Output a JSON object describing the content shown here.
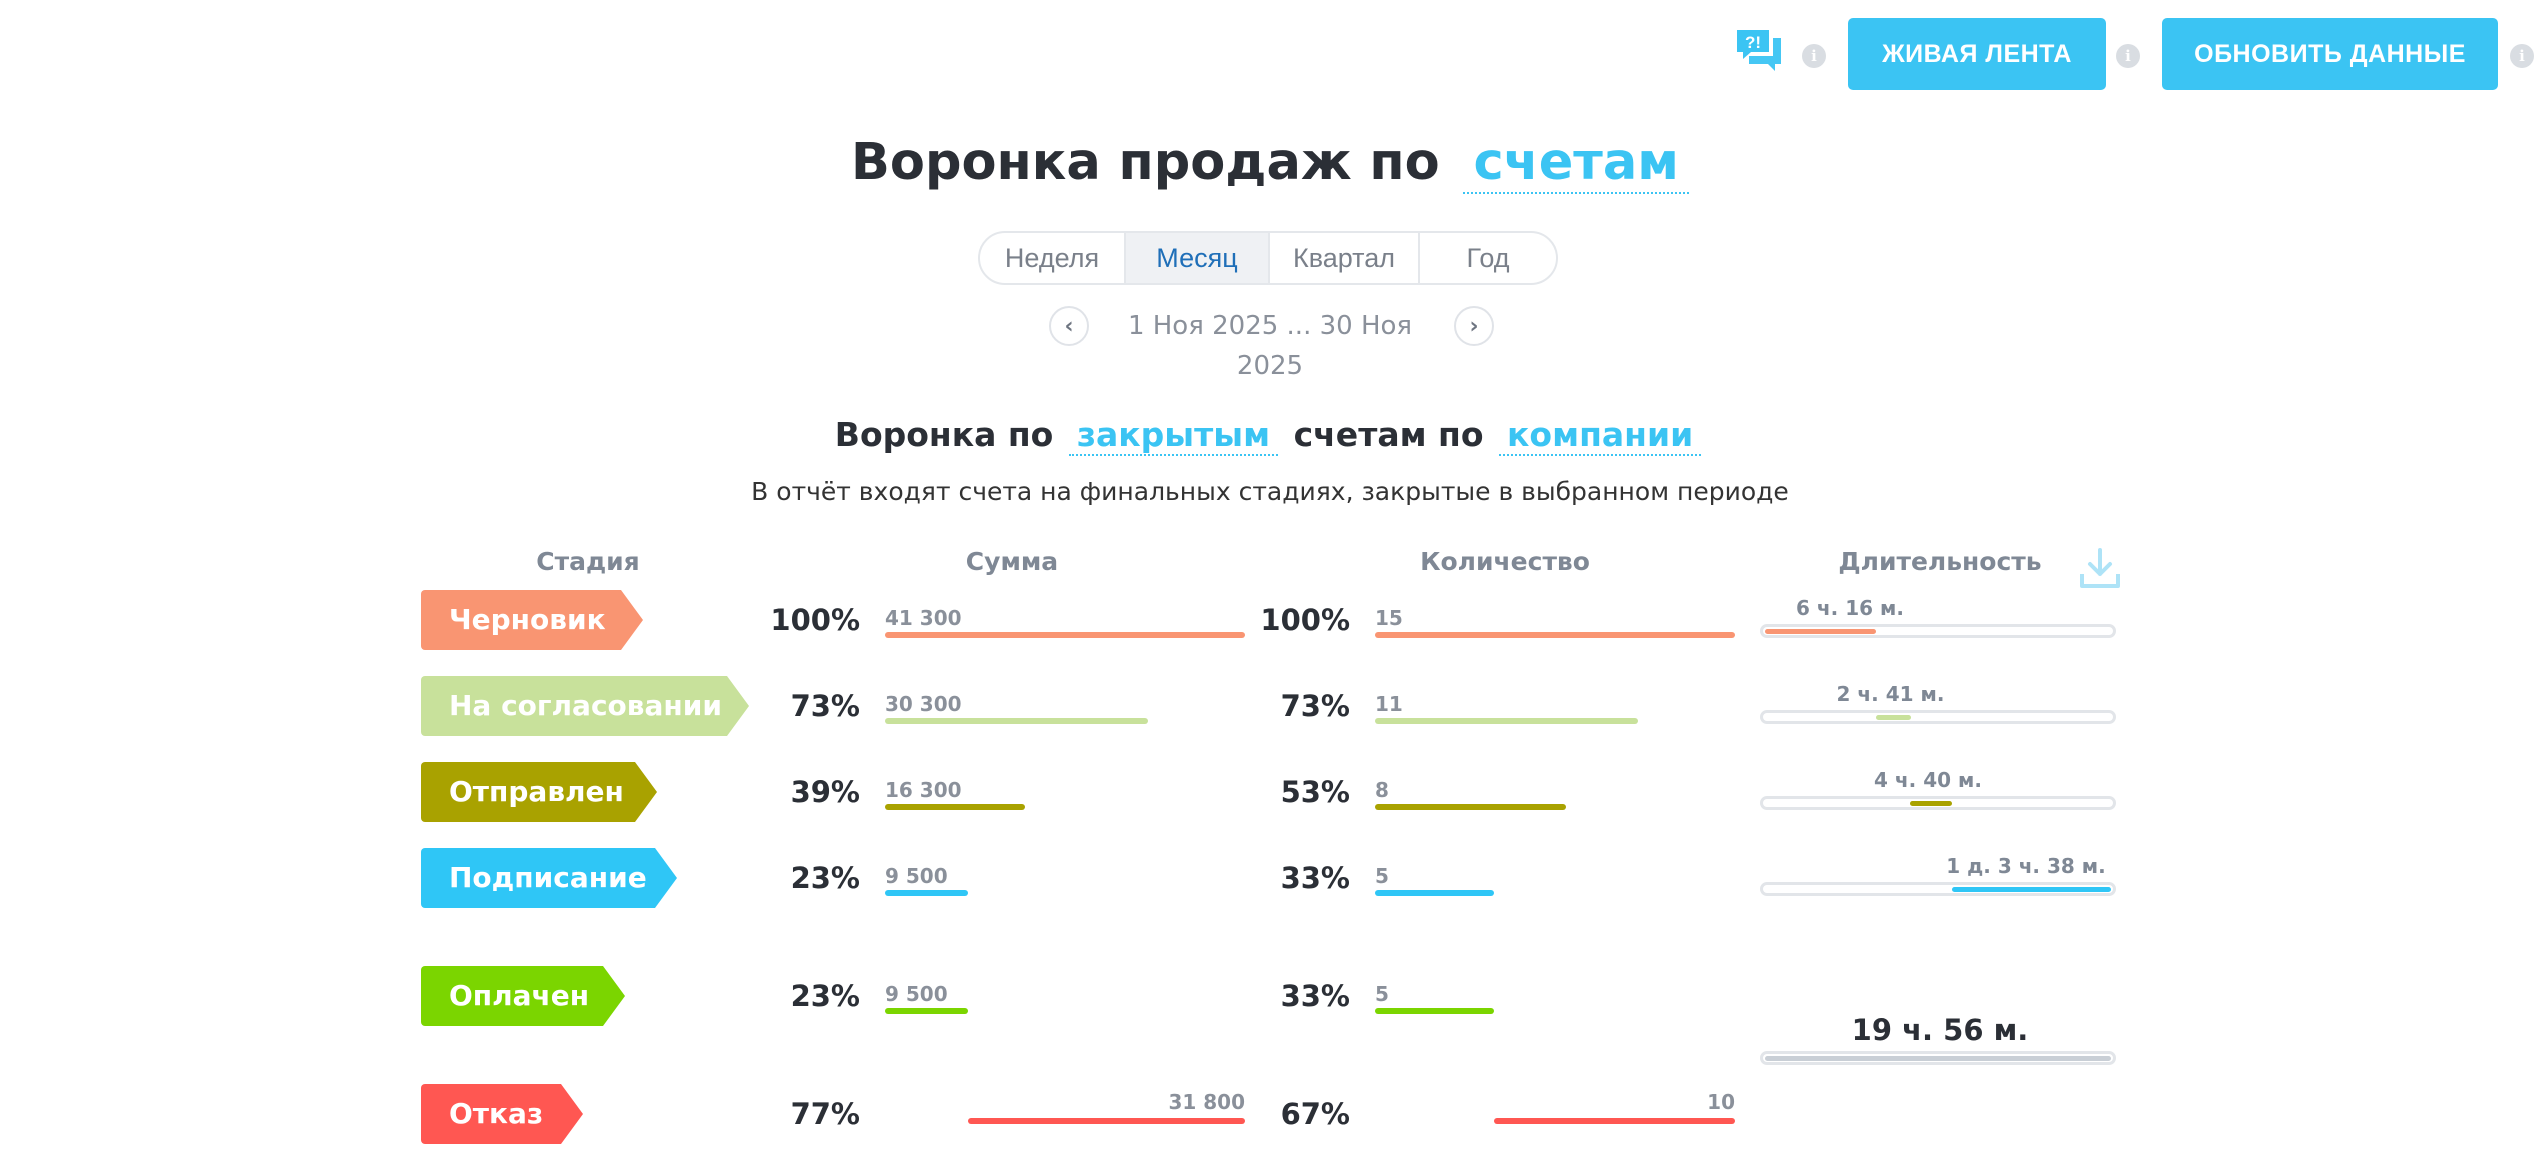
{
  "top_bar": {
    "live_feed_label": "ЖИВАЯ ЛЕНТА",
    "refresh_label": "ОБНОВИТЬ ДАННЫЕ",
    "help_icon_text": "?!",
    "info_glyph": "i"
  },
  "header": {
    "title_prefix": "Воронка продаж по",
    "title_link": "счетам"
  },
  "period": {
    "tabs": [
      {
        "label": "Неделя"
      },
      {
        "label": "Месяц",
        "active": true
      },
      {
        "label": "Квартал"
      },
      {
        "label": "Год"
      }
    ],
    "date_range": "1 Ноя 2025 ... 30 Ноя 2025",
    "prev_glyph": "‹",
    "next_glyph": "›"
  },
  "report": {
    "title_part1": "Воронка по",
    "title_link1": "закрытым",
    "title_part2": "счетам по",
    "title_link2": "компании",
    "description": "В отчёт входят счета на финальных стадиях, закрытые в выбранном периоде"
  },
  "columns": {
    "stage": "Стадия",
    "sum": "Сумма",
    "count": "Количество",
    "duration": "Длительность"
  },
  "stages": [
    {
      "name": "Черновик",
      "color": "#f99572",
      "sum_pct": "100%",
      "sum": "41 300",
      "sum_fraction": 1.0,
      "count_pct": "100%",
      "count": "15",
      "count_fraction": 1.0,
      "duration": "6 ч. 16 м.",
      "duration_fill": [
        0.0,
        0.32
      ]
    },
    {
      "name": "На согласовании",
      "color": "#c8e19b",
      "sum_pct": "73%",
      "sum": "30 300",
      "sum_fraction": 0.73,
      "count_pct": "73%",
      "count": "11",
      "count_fraction": 0.73,
      "duration": "2 ч. 41 м.",
      "duration_fill": [
        0.32,
        0.42
      ]
    },
    {
      "name": "Отправлен",
      "color": "#a9a200",
      "sum_pct": "39%",
      "sum": "16 300",
      "sum_fraction": 0.39,
      "count_pct": "53%",
      "count": "8",
      "count_fraction": 0.53,
      "duration": "4 ч. 40 м.",
      "duration_fill": [
        0.42,
        0.54
      ]
    },
    {
      "name": "Подписание",
      "color": "#2fc6f6",
      "sum_pct": "23%",
      "sum": "9 500",
      "sum_fraction": 0.23,
      "count_pct": "33%",
      "count": "5",
      "count_fraction": 0.33,
      "duration": "1 д. 3 ч. 38 м.",
      "duration_fill": [
        0.54,
        1.0
      ]
    },
    {
      "name": "Оплачен",
      "color": "#7bd500",
      "sum_pct": "23%",
      "sum": "9 500",
      "sum_fraction": 0.23,
      "count_pct": "33%",
      "count": "5",
      "count_fraction": 0.33
    },
    {
      "name": "Отказ",
      "color": "#ff5752",
      "sum_pct": "77%",
      "sum": "31 800",
      "sum_fraction": 0.77,
      "count_pct": "67%",
      "count": "10",
      "count_fraction": 0.67,
      "right_aligned": true
    }
  ],
  "total_duration": "19 ч. 56 м."
}
